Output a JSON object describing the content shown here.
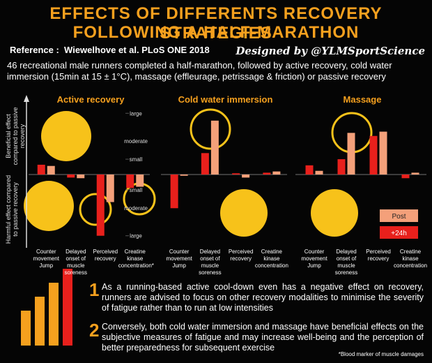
{
  "header": {
    "title_line1": "EFFECTS OF DIFFERENTS RECOVERY STRATEGIES",
    "title_line2": "FOLLOWING A HALF-MARATHON",
    "reference_label": "Reference :",
    "reference": "Wiewelhove et al. PLoS ONE 2018",
    "designer": "Designed by @YLMSportScience",
    "description": "46 recreational male runners completed a half-marathon, followed by active recovery, cold water immersion (15min at 15 ± 1°C), massage (effleurage, petrissage & friction) or passive recovery"
  },
  "y_axis": {
    "beneficial": "Beneficial effect compared to passive recovery",
    "harmful": "Harmful effect compared to passive recovery"
  },
  "chart_data": [
    {
      "type": "bar",
      "title": "Active recovery",
      "categories": [
        "Counter movement Jump",
        "Delayed onset of muscle soreness",
        "Perceived recovery",
        "Creatine kinase concentration*"
      ],
      "series": [
        {
          "color": "#f4a07a",
          "values": [
            0.14,
            -0.06,
            -0.45,
            -0.2
          ]
        },
        {
          "color": "#e8201c",
          "values": [
            0.16,
            -0.05,
            -1.0,
            -0.22
          ]
        }
      ],
      "ylim": [
        -1.14,
        1.14
      ],
      "yticks": [
        {
          "value": 1,
          "label": "large"
        },
        {
          "value": 0.55,
          "label": "moderate"
        },
        {
          "value": 0.25,
          "label": "small"
        },
        {
          "value": -0.25,
          "label": "small"
        },
        {
          "value": -0.55,
          "label": "moderate"
        },
        {
          "value": -1,
          "label": "large"
        }
      ]
    },
    {
      "type": "bar",
      "title": "Cold water immersion",
      "categories": [
        "Counter movement Jump",
        "Delayed onset of muscle soreness",
        "Perceived recovery",
        "Creatine kinase concentration"
      ],
      "series": [
        {
          "color": "#f4a07a",
          "values": [
            -0.02,
            0.88,
            -0.05,
            0.05
          ]
        },
        {
          "color": "#e8201c",
          "values": [
            -0.55,
            0.35,
            0.02,
            0.03
          ]
        }
      ],
      "ylim": [
        -1.14,
        1.14
      ]
    },
    {
      "type": "bar",
      "title": "Massage",
      "categories": [
        "Counter movement Jump",
        "Delayed onset of muscle soreness",
        "Perceived recovery",
        "Creatine kinase concentration"
      ],
      "series": [
        {
          "name": "Post",
          "color": "#f4a07a",
          "values": [
            0.06,
            0.68,
            0.7,
            0.03
          ]
        },
        {
          "name": "+24h",
          "color": "#e8201c",
          "values": [
            0.15,
            0.25,
            0.63,
            -0.06
          ]
        }
      ],
      "ylim": [
        -1.14,
        1.14
      ],
      "legend": "bottom-right"
    }
  ],
  "conclusions": [
    {
      "number": "1",
      "text": "As a running-based active cool-down even has a negative effect on recovery, runners are advised to focus on other recovery modalities to minimise the severity of fatigue rather than to run at low intensities"
    },
    {
      "number": "2",
      "text": "Conversely, both cold water immersion and massage have beneficial effects on the subjective measures of fatigue and may increase well-being and the perception of better preparedness for subsequent exercise"
    }
  ],
  "footnote": "*Blood marker of muscle damages"
}
